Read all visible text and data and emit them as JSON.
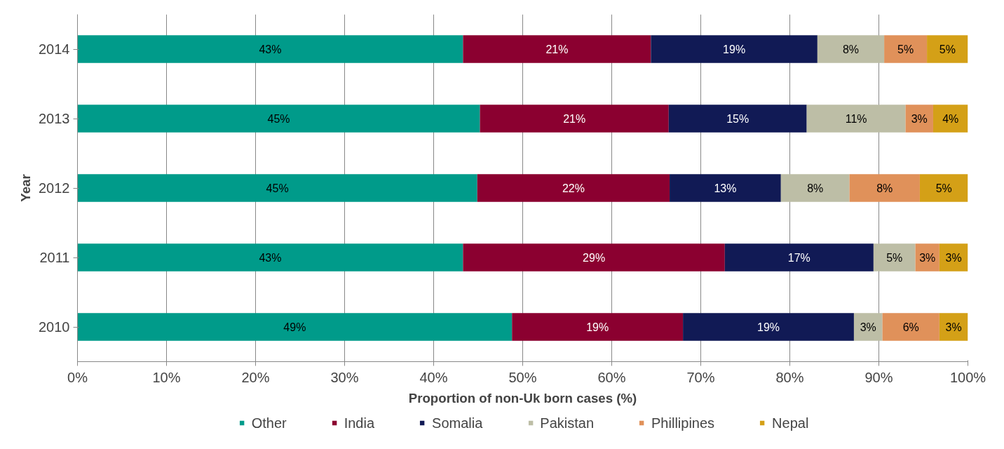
{
  "chart_data": {
    "type": "bar",
    "orientation": "horizontal",
    "stacked": true,
    "xlabel": "Proportion of non-Uk born cases (%)",
    "ylabel": "Year",
    "categories": [
      "2014",
      "2013",
      "2012",
      "2011",
      "2010"
    ],
    "series": [
      {
        "name": "Other",
        "color": "#009b8a",
        "values": [
          43.3,
          45.2,
          44.9,
          43.3,
          48.8
        ],
        "value_labels": [
          "43%",
          "45%",
          "45%",
          "43%",
          "49%"
        ]
      },
      {
        "name": "India",
        "color": "#8b0030",
        "values": [
          21.1,
          21.2,
          21.6,
          29.4,
          19.2
        ],
        "value_labels": [
          "21%",
          "21%",
          "22%",
          "29%",
          "19%"
        ]
      },
      {
        "name": "Somalia",
        "color": "#111a55",
        "values": [
          18.7,
          15.5,
          12.5,
          16.7,
          19.2
        ],
        "value_labels": [
          "19%",
          "15%",
          "13%",
          "17%",
          "19%"
        ]
      },
      {
        "name": "Pakistan",
        "color": "#bdbea6",
        "values": [
          7.5,
          11.1,
          7.7,
          4.7,
          3.2
        ],
        "value_labels": [
          "8%",
          "11%",
          "8%",
          "5%",
          "3%"
        ]
      },
      {
        "name": "Phillipines",
        "color": "#e0915a",
        "values": [
          4.8,
          3.1,
          7.9,
          2.7,
          6.4
        ],
        "value_labels": [
          "5%",
          "3%",
          "8%",
          "3%",
          "6%"
        ]
      },
      {
        "name": "Nepal",
        "color": "#d4a017",
        "values": [
          4.6,
          3.9,
          5.4,
          3.2,
          3.2
        ],
        "value_labels": [
          "5%",
          "4%",
          "5%",
          "3%",
          "3%"
        ]
      }
    ],
    "xlim": [
      0,
      100
    ],
    "xticks": [
      {
        "value": 0,
        "label": "0%"
      },
      {
        "value": 10,
        "label": "10%"
      },
      {
        "value": 20,
        "label": "20%"
      },
      {
        "value": 30,
        "label": "30%"
      },
      {
        "value": 40,
        "label": "40%"
      },
      {
        "value": 50,
        "label": "50%"
      },
      {
        "value": 60,
        "label": "60%"
      },
      {
        "value": 70,
        "label": "70%"
      },
      {
        "value": 80,
        "label": "80%"
      },
      {
        "value": 90,
        "label": "90%"
      },
      {
        "value": 100,
        "label": "100%"
      }
    ],
    "grid": "x",
    "legend": "bottom"
  }
}
